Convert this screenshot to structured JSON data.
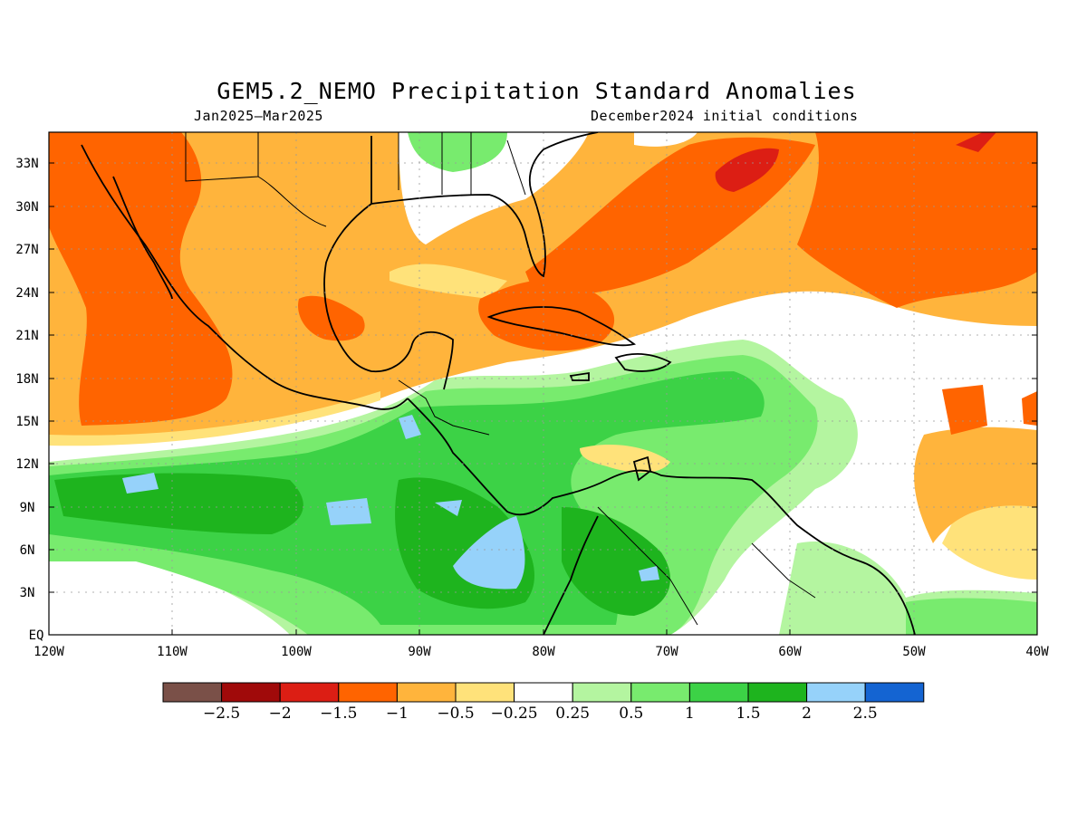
{
  "title": "GEM5.2_NEMO Precipitation Standard Anomalies",
  "subtitle_left": "Jan2025–Mar2025",
  "subtitle_right": "December2024 initial conditions",
  "lat_labels": [
    "EQ",
    "3N",
    "6N",
    "9N",
    "12N",
    "15N",
    "18N",
    "21N",
    "24N",
    "27N",
    "30N",
    "33N"
  ],
  "lon_labels": [
    "120W",
    "110W",
    "100W",
    "90W",
    "80W",
    "70W",
    "60W",
    "50W",
    "40W"
  ],
  "colorbar": {
    "colors": [
      "#7a5048",
      "#a00a0a",
      "#dc1e14",
      "#ff6400",
      "#ffb43c",
      "#ffe27a",
      "#ffffff",
      "#b4f5a0",
      "#78eb6e",
      "#3cd246",
      "#1eb41e",
      "#96d2fa",
      "#1464d2"
    ],
    "labels": [
      "−2.5",
      "−2",
      "−1.5",
      "−1",
      "−0.5",
      "−0.25",
      "0.25",
      "0.5",
      "1",
      "1.5",
      "2",
      "2.5"
    ]
  },
  "legend_hidden": false
}
